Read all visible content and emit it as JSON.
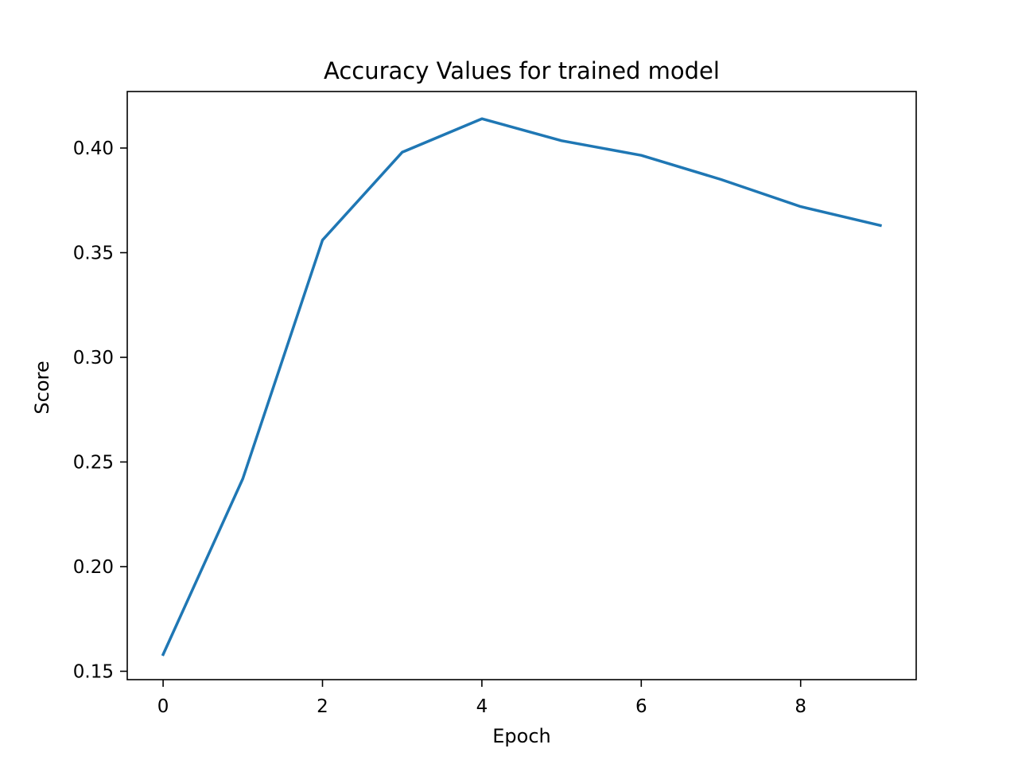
{
  "chart_data": {
    "type": "line",
    "title": "Accuracy Values for trained model",
    "xlabel": "Epoch",
    "ylabel": "Score",
    "x": [
      0,
      1,
      2,
      3,
      4,
      5,
      6,
      7,
      8,
      9
    ],
    "series": [
      {
        "values": [
          0.158,
          0.242,
          0.356,
          0.398,
          0.414,
          0.4035,
          0.3965,
          0.385,
          0.372,
          0.363
        ],
        "color": "#1f77b4"
      }
    ],
    "xlim": [
      -0.45,
      9.45
    ],
    "ylim": [
      0.146,
      0.427
    ],
    "xticks": [
      0,
      2,
      4,
      6,
      8
    ],
    "xtick_labels": [
      "0",
      "2",
      "4",
      "6",
      "8"
    ],
    "yticks": [
      0.15,
      0.2,
      0.25,
      0.3,
      0.35,
      0.4
    ],
    "ytick_labels": [
      "0.15",
      "0.20",
      "0.25",
      "0.30",
      "0.35",
      "0.40"
    ],
    "grid": false,
    "legend": "none"
  }
}
